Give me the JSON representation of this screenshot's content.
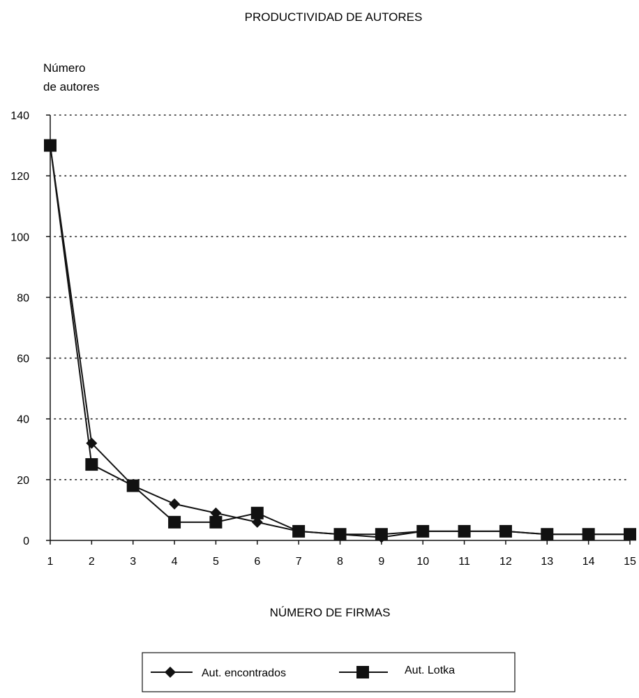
{
  "chart_data": {
    "type": "line",
    "title": "PRODUCTIVIDAD DE AUTORES",
    "ylabel_lines": [
      "Número",
      "de autores"
    ],
    "xlabel": "NÚMERO DE FIRMAS",
    "x": [
      1,
      2,
      3,
      4,
      5,
      6,
      7,
      8,
      9,
      10,
      11,
      12,
      13,
      14,
      15
    ],
    "xlim": [
      1,
      15
    ],
    "ylim": [
      0,
      140
    ],
    "yticks": [
      0,
      20,
      40,
      60,
      80,
      100,
      120,
      140
    ],
    "grid": "horizontal-dotted",
    "legend_position": "bottom-center",
    "series": [
      {
        "name": "Aut. encontrados",
        "marker": "diamond",
        "values": [
          130,
          32,
          18,
          12,
          9,
          6,
          3,
          2,
          1,
          3,
          3,
          3,
          2,
          2,
          2
        ]
      },
      {
        "name": "Aut. Lotka",
        "marker": "square",
        "values": [
          130,
          25,
          18,
          6,
          6,
          9,
          3,
          2,
          2,
          3,
          3,
          3,
          2,
          2,
          2
        ]
      }
    ],
    "colors": {
      "line": "#111111",
      "grid": "#222222"
    }
  }
}
